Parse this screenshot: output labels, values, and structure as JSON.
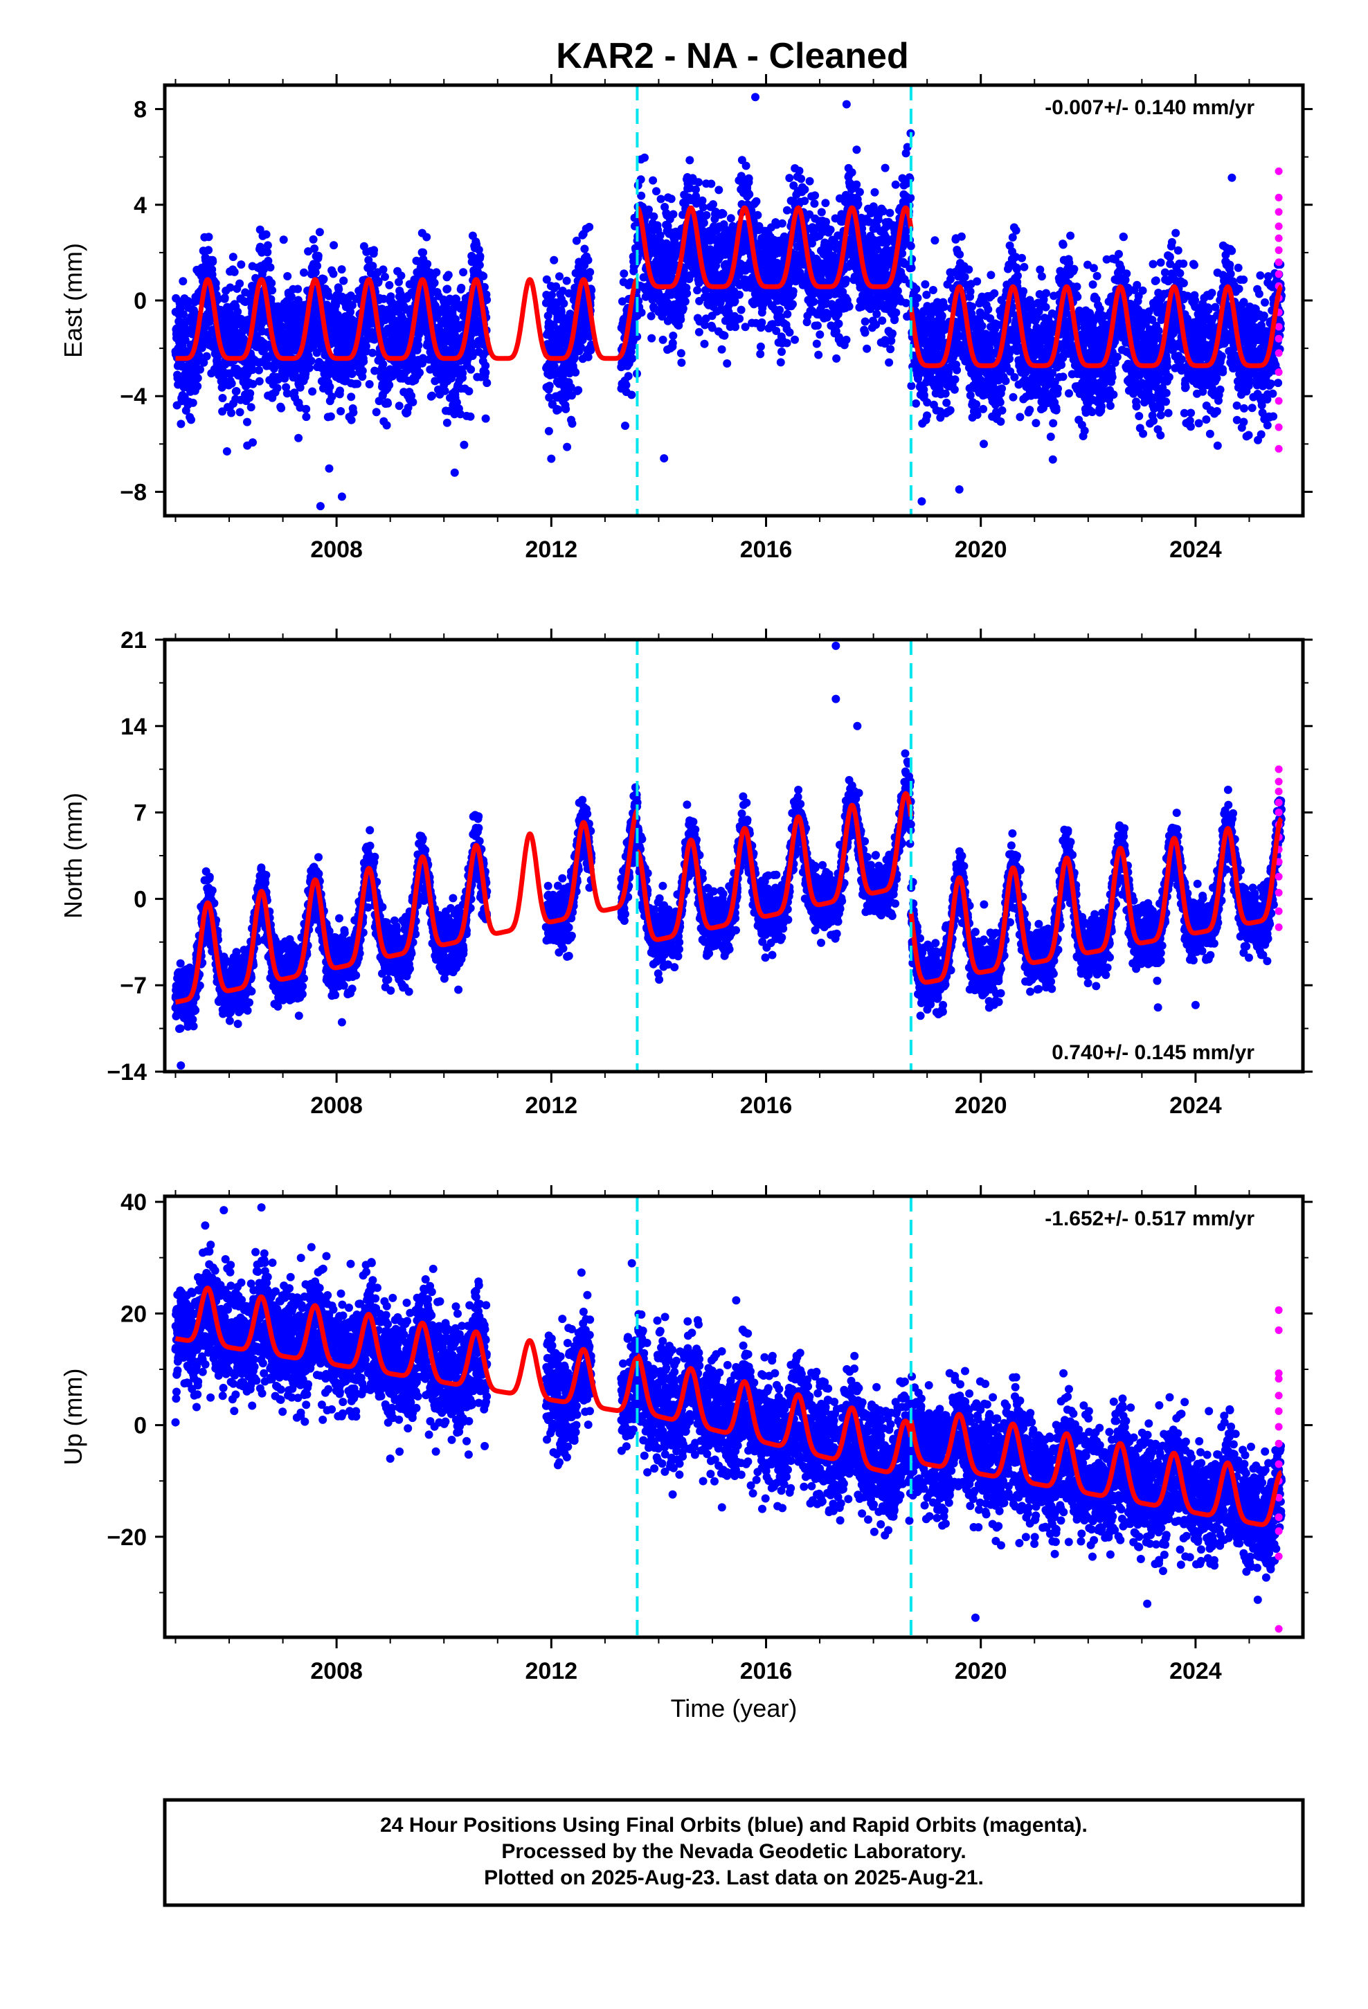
{
  "title": "KAR2  - NA - Cleaned",
  "colors": {
    "final_orbits": "#0000ff",
    "rapid_orbits": "#ff00ff",
    "model_fit": "#ff0000",
    "offset_lines": "#00e5ee"
  },
  "chart_data": [
    {
      "type": "scatter",
      "ylabel": "East (mm)",
      "xlabel": "",
      "xlim": [
        2004.8,
        2026.0
      ],
      "ylim": [
        -9,
        9
      ],
      "yticks": [
        -8,
        -4,
        0,
        4,
        8
      ],
      "xticks": [
        2008,
        2012,
        2016,
        2020,
        2024
      ],
      "rate_label": "-0.007+/- 0.140 mm/yr",
      "rate_position": "top-right",
      "offsets": [
        2013.6,
        2018.7
      ],
      "model": {
        "segments": [
          {
            "start": 2005.0,
            "end": 2013.6,
            "base": -1.6,
            "amp": 3.3
          },
          {
            "start": 2013.6,
            "end": 2018.7,
            "base": 1.4,
            "amp": 3.3
          },
          {
            "start": 2018.7,
            "end": 2025.6,
            "base": -1.9,
            "amp": 3.3
          }
        ]
      },
      "scatter": {
        "sigma": 1.3,
        "extra_amp": 1.8,
        "gaps": [
          [
            2010.8,
            2011.9
          ],
          [
            2012.75,
            2013.3
          ]
        ]
      },
      "rapid": {
        "x": 2025.55,
        "values": [
          5.4,
          4.3,
          3.7,
          3.1,
          2.6,
          2.1,
          1.6,
          1.1,
          0.6,
          0.1,
          -0.5,
          -1.1,
          -1.6,
          -2.2,
          -3.0,
          -4.2,
          -5.3,
          -6.2
        ]
      },
      "outliers": [
        [
          2007.7,
          -8.6
        ],
        [
          2008.1,
          -8.2
        ],
        [
          2018.9,
          -8.4
        ],
        [
          2014.1,
          -6.6
        ],
        [
          2010.2,
          -7.2
        ],
        [
          2015.8,
          8.5
        ],
        [
          2017.5,
          8.2
        ],
        [
          2019.6,
          -7.9
        ]
      ]
    },
    {
      "type": "scatter",
      "ylabel": "North (mm)",
      "xlabel": "",
      "xlim": [
        2004.8,
        2026.0
      ],
      "ylim": [
        -14,
        21
      ],
      "yticks": [
        -14,
        -7,
        0,
        7,
        14,
        21
      ],
      "xticks": [
        2008,
        2012,
        2016,
        2020,
        2024
      ],
      "rate_label": "0.740+/- 0.145 mm/yr",
      "rate_position": "bottom-right",
      "offsets": [
        2013.6,
        2018.7
      ],
      "model": {
        "segments": [
          {
            "start": 2005.0,
            "end": 2013.6,
            "base": -6.5,
            "base_end": 1.5,
            "amp": 7.5
          },
          {
            "start": 2013.6,
            "end": 2018.7,
            "base": -1.8,
            "base_end": 3.0,
            "amp": 7.5
          },
          {
            "start": 2018.7,
            "end": 2025.6,
            "base": -5.0,
            "base_end": 0.5,
            "amp": 8.0
          }
        ]
      },
      "scatter": {
        "sigma": 1.2,
        "extra_amp": 0.8,
        "gaps": [
          [
            2010.8,
            2011.9
          ],
          [
            2012.75,
            2013.3
          ]
        ]
      },
      "rapid": {
        "x": 2025.55,
        "values": [
          10.5,
          9.5,
          8.7,
          7.8,
          7.0,
          6.0,
          5.0,
          4.0,
          3.0,
          1.8,
          0.5,
          -1.0,
          -2.3
        ]
      },
      "outliers": [
        [
          2017.3,
          20.5
        ],
        [
          2017.3,
          16.2
        ],
        [
          2017.7,
          14.0
        ],
        [
          2005.1,
          -13.5
        ],
        [
          2018.9,
          -8.0
        ],
        [
          2023.3,
          -8.8
        ],
        [
          2024.0,
          -8.6
        ],
        [
          2008.1,
          -10.0
        ]
      ]
    },
    {
      "type": "scatter",
      "ylabel": "Up (mm)",
      "xlabel": "Time (year)",
      "xlim": [
        2004.8,
        2026.0
      ],
      "ylim": [
        -38,
        41
      ],
      "yticks": [
        -20,
        0,
        20,
        40
      ],
      "xticks": [
        2008,
        2012,
        2016,
        2020,
        2024
      ],
      "rate_label": "-1.652+/- 0.517 mm/yr",
      "rate_position": "top-right",
      "offsets": [
        2013.6,
        2018.7
      ],
      "model": {
        "segments": [
          {
            "start": 2005.0,
            "end": 2013.6,
            "base": 18.0,
            "base_end": 4.5,
            "amp": 10.0
          },
          {
            "start": 2013.6,
            "end": 2018.7,
            "base": 5.0,
            "base_end": -7.0,
            "amp": 10.0
          },
          {
            "start": 2018.7,
            "end": 2025.6,
            "base": -4.0,
            "base_end": -16.0,
            "amp": 10.0
          }
        ]
      },
      "scatter": {
        "sigma": 5.0,
        "extra_amp": 6.0,
        "gaps": [
          [
            2010.8,
            2011.9
          ],
          [
            2012.75,
            2013.3
          ]
        ]
      },
      "rapid": {
        "x": 2025.55,
        "values": [
          20.6,
          17.0,
          9.3,
          8.3,
          5.3,
          2.5,
          -0.3,
          -3.3,
          -7.0,
          -10.0,
          -13.0,
          -16.5,
          -19.0,
          -23.5,
          -36.5
        ]
      },
      "outliers": [
        [
          2019.9,
          -34.5
        ],
        [
          2023.1,
          -32.0
        ],
        [
          2006.6,
          39.0
        ],
        [
          2005.9,
          38.5
        ],
        [
          2013.5,
          29.0
        ],
        [
          2009.8,
          28.0
        ],
        [
          2005.0,
          0.5
        ],
        [
          2009.0,
          -6.0
        ]
      ]
    }
  ],
  "footer": {
    "line1": "24 Hour Positions Using Final Orbits (blue) and Rapid Orbits (magenta).",
    "line2": "Processed by the Nevada Geodetic Laboratory.",
    "line3": "Plotted on 2025-Aug-23. Last data on 2025-Aug-21."
  }
}
